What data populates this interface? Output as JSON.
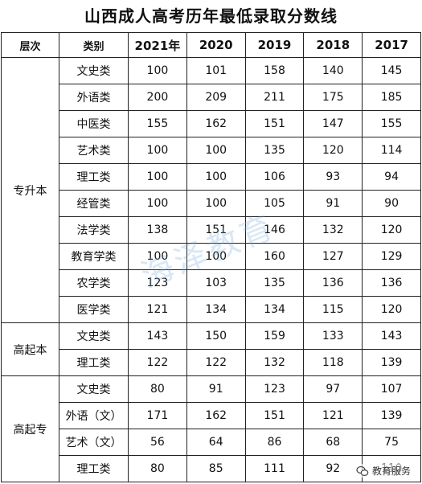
{
  "title": "山西成人高考历年最低录取分数线",
  "headers": {
    "level": "层次",
    "category": "类别",
    "years": [
      "2021年",
      "2020",
      "2019",
      "2018",
      "2017"
    ]
  },
  "groups": [
    {
      "level": "专升本",
      "rows": [
        {
          "category": "文史类",
          "scores": [
            "100",
            "101",
            "158",
            "140",
            "145"
          ]
        },
        {
          "category": "外语类",
          "scores": [
            "200",
            "209",
            "211",
            "175",
            "185"
          ]
        },
        {
          "category": "中医类",
          "scores": [
            "155",
            "162",
            "151",
            "147",
            "155"
          ]
        },
        {
          "category": "艺术类",
          "scores": [
            "100",
            "100",
            "135",
            "120",
            "114"
          ]
        },
        {
          "category": "理工类",
          "scores": [
            "100",
            "100",
            "106",
            "93",
            "94"
          ]
        },
        {
          "category": "经管类",
          "scores": [
            "100",
            "100",
            "105",
            "91",
            "90"
          ]
        },
        {
          "category": "法学类",
          "scores": [
            "138",
            "151",
            "146",
            "132",
            "120"
          ]
        },
        {
          "category": "教育学类",
          "scores": [
            "100",
            "100",
            "160",
            "127",
            "129"
          ]
        },
        {
          "category": "农学类",
          "scores": [
            "123",
            "103",
            "135",
            "136",
            "136"
          ]
        },
        {
          "category": "医学类",
          "scores": [
            "121",
            "134",
            "134",
            "115",
            "120"
          ]
        }
      ]
    },
    {
      "level": "高起本",
      "rows": [
        {
          "category": "文史类",
          "scores": [
            "143",
            "150",
            "159",
            "133",
            "143"
          ]
        },
        {
          "category": "理工类",
          "scores": [
            "122",
            "122",
            "132",
            "118",
            "139"
          ]
        }
      ]
    },
    {
      "level": "高起专",
      "rows": [
        {
          "category": "文史类",
          "scores": [
            "80",
            "91",
            "123",
            "97",
            "107"
          ]
        },
        {
          "category": "外语（文）",
          "scores": [
            "171",
            "162",
            "151",
            "121",
            "139"
          ]
        },
        {
          "category": "艺术（文）",
          "scores": [
            "56",
            "64",
            "86",
            "68",
            "75"
          ]
        },
        {
          "category": "理工类",
          "scores": [
            "80",
            "85",
            "111",
            "92",
            "110"
          ]
        }
      ]
    }
  ],
  "watermark": "海泽教育",
  "brand": "教育服务",
  "colors": {
    "watermark": "#78aadc",
    "border": "#222222"
  }
}
